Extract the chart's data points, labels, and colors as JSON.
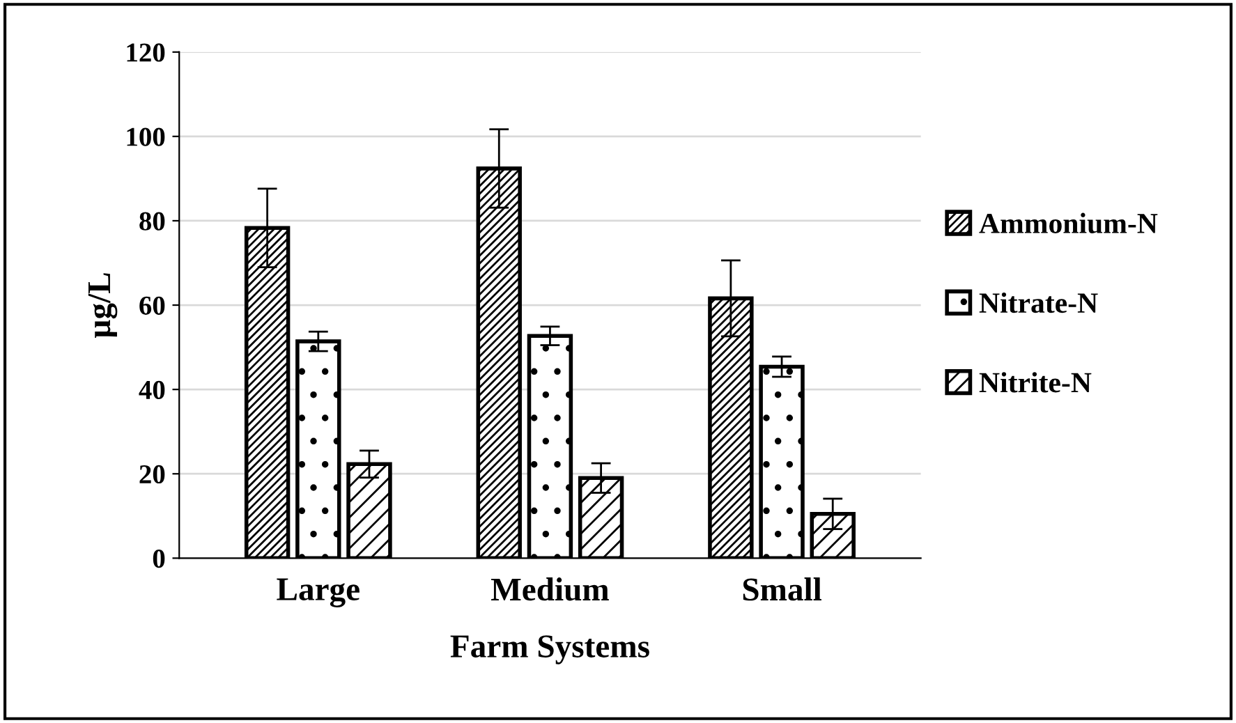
{
  "chart_data": {
    "type": "bar",
    "xlabel": "Farm Systems",
    "ylabel": "µg/L",
    "categories": [
      "Large",
      "Medium",
      "Small"
    ],
    "series": [
      {
        "name": "Ammonium-N",
        "color": "#000000",
        "values": [
          78.3,
          92.4,
          61.6
        ],
        "errors": [
          9.3,
          9.3,
          9.0
        ]
      },
      {
        "name": "Nitrate-N",
        "color": "#000000",
        "values": [
          51.4,
          52.7,
          45.4
        ],
        "errors": [
          2.3,
          2.2,
          2.4
        ]
      },
      {
        "name": "Nitrite-N",
        "color": "#000000",
        "values": [
          22.3,
          19.0,
          10.5
        ],
        "errors": [
          3.2,
          3.5,
          3.6
        ]
      }
    ],
    "ylim": [
      0,
      120
    ],
    "yticks": [
      0,
      20,
      40,
      60,
      80,
      100,
      120
    ],
    "grid": "y",
    "legend": "right"
  }
}
